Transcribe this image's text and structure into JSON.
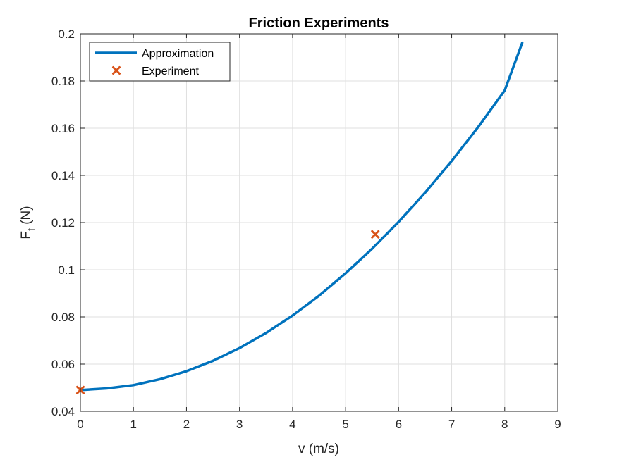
{
  "chart_data": {
    "type": "line",
    "title": "Friction Experiments",
    "xlabel": "v (m/s)",
    "ylabel": {
      "main": "F",
      "sub": "f",
      "unit": " (N)"
    },
    "xlim": [
      0,
      9
    ],
    "ylim": [
      0.04,
      0.2
    ],
    "xticks": [
      "0",
      "1",
      "2",
      "3",
      "4",
      "5",
      "6",
      "7",
      "8",
      "9"
    ],
    "yticks": [
      "0.04",
      "0.06",
      "0.08",
      "0.1",
      "0.12",
      "0.14",
      "0.16",
      "0.18",
      "0.2"
    ],
    "grid": true,
    "legend_position": "top-left",
    "series": [
      {
        "name": "Approximation",
        "style": "line",
        "color": "#0072BD",
        "x": [
          0,
          0.5,
          1,
          1.5,
          2,
          2.5,
          3,
          3.5,
          4,
          4.5,
          5,
          5.5,
          6,
          6.5,
          7,
          7.5,
          8,
          8.33
        ],
        "y": [
          0.049,
          0.0497,
          0.0511,
          0.0536,
          0.057,
          0.0614,
          0.0668,
          0.0732,
          0.0806,
          0.089,
          0.0985,
          0.1089,
          0.1203,
          0.1327,
          0.1461,
          0.1605,
          0.176,
          0.1962
        ]
      },
      {
        "name": "Experiment",
        "style": "marker-x",
        "color": "#D95319",
        "x": [
          0,
          5.56
        ],
        "y": [
          0.049,
          0.115
        ]
      }
    ]
  }
}
